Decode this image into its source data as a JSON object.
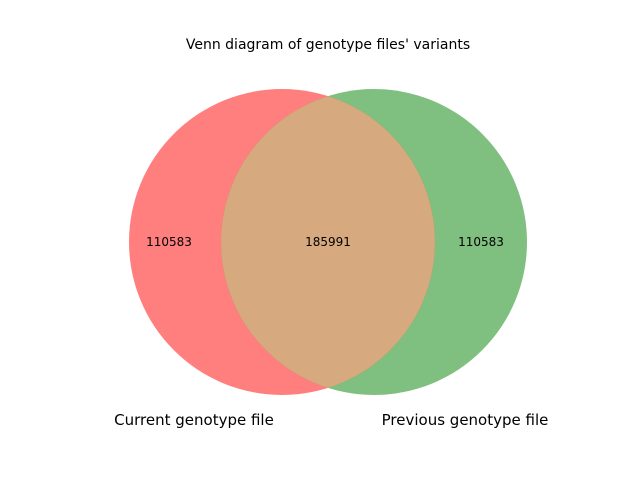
{
  "title": "Venn diagram of genotype files' variants",
  "sets": [
    {
      "name": "Current genotype file",
      "only_count": "110583",
      "color": "#ff0000"
    },
    {
      "name": "Previous genotype file",
      "only_count": "110583",
      "color": "#008000"
    }
  ],
  "intersection": {
    "count": "185991",
    "color": "#d6aa7e"
  },
  "chart_data": {
    "type": "venn",
    "title": "Venn diagram of genotype files' variants",
    "sets": [
      "Current genotype file",
      "Previous genotype file"
    ],
    "regions": [
      {
        "sets": [
          "Current genotype file"
        ],
        "value": 110583
      },
      {
        "sets": [
          "Previous genotype file"
        ],
        "value": 110583
      },
      {
        "sets": [
          "Current genotype file",
          "Previous genotype file"
        ],
        "value": 185991
      }
    ]
  }
}
